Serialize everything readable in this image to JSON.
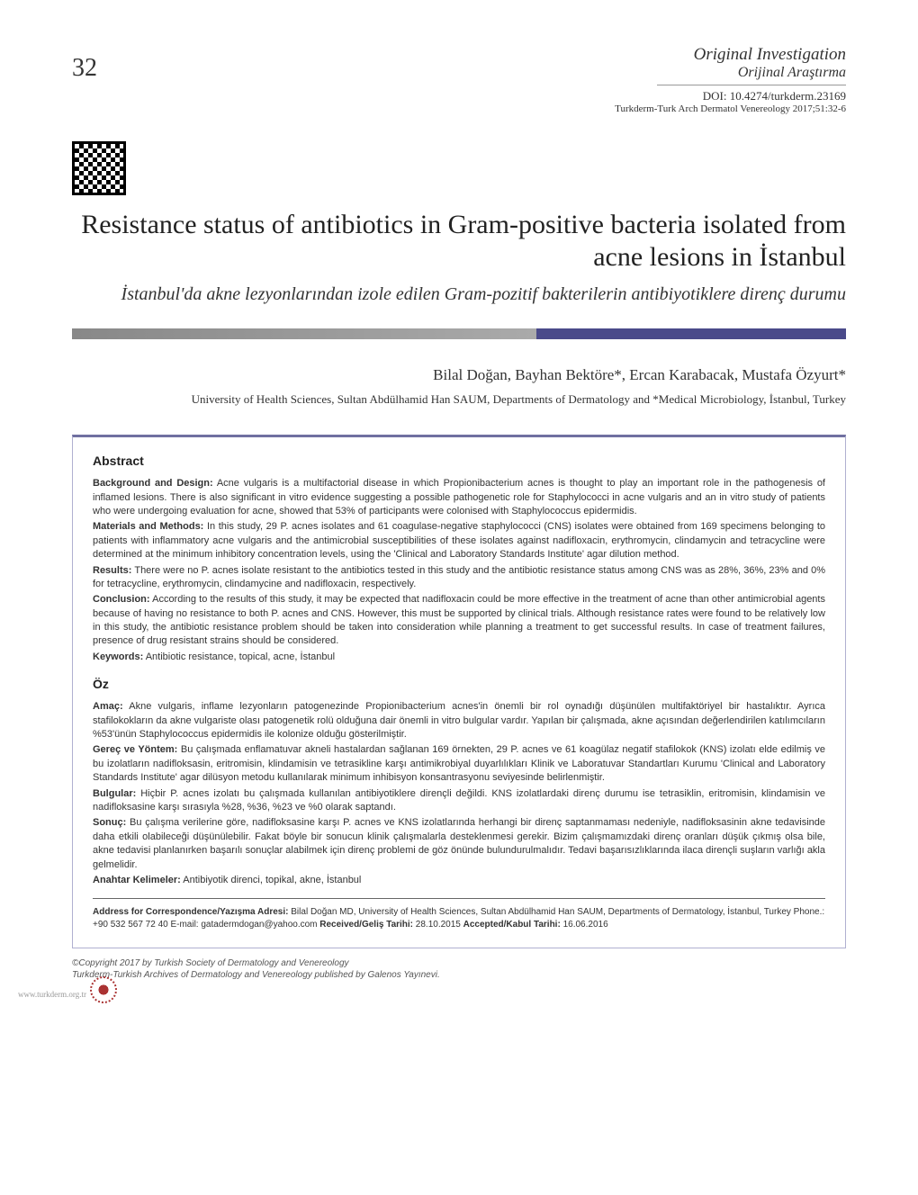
{
  "page_number": "32",
  "header": {
    "article_type_en": "Original Investigation",
    "article_type_tr": "Orijinal Araştırma",
    "doi": "DOI: 10.4274/turkderm.23169",
    "citation": "Turkderm-Turk Arch Dermatol Venereology 2017;51:32-6"
  },
  "title": {
    "en": "Resistance status of antibiotics in Gram-positive bacteria isolated from acne lesions in İstanbul",
    "tr": "İstanbul'da akne lezyonlarından izole edilen Gram-pozitif bakterilerin antibiyotiklere direnç durumu"
  },
  "authors": "Bilal Doğan, Bayhan Bektöre*, Ercan Karabacak, Mustafa Özyurt*",
  "affiliation": "University of Health Sciences, Sultan Abdülhamid Han SAUM, Departments of Dermatology and *Medical Microbiology, İstanbul, Turkey",
  "abstract": {
    "heading": "Abstract",
    "background_label": "Background and Design:",
    "background_text": " Acne vulgaris is a multifactorial disease in which Propionibacterium acnes is thought to play an important role in the pathogenesis of inflamed lesions. There is also significant in vitro evidence suggesting a possible pathogenetic role for Staphylococci in acne vulgaris and an in vitro study of patients who were undergoing evaluation for acne, showed that 53% of participants were colonised with Staphylococcus epidermidis.",
    "materials_label": "Materials and Methods:",
    "materials_text": " In this study, 29 P. acnes isolates and 61 coagulase-negative staphylococci (CNS) isolates were obtained from 169 specimens belonging to patients with inflammatory acne vulgaris and the antimicrobial susceptibilities of these isolates against nadifloxacin, erythromycin, clindamycin and tetracycline were determined at the minimum inhibitory concentration levels, using the 'Clinical and Laboratory Standards Institute' agar dilution method.",
    "results_label": "Results:",
    "results_text": " There were no P. acnes isolate resistant to the antibiotics tested in this study and the antibiotic resistance status among CNS was as 28%, 36%, 23% and 0% for tetracycline, erythromycin, clindamycine and nadifloxacin, respectively.",
    "conclusion_label": "Conclusion:",
    "conclusion_text": " According to the results of this study, it may be expected that nadifloxacin could be more effective in the treatment of acne than other antimicrobial agents because of having no resistance to both P. acnes and CNS. However, this must be supported by clinical trials. Although resistance rates were found to be relatively low in this study, the antibiotic resistance problem should be taken into consideration while planning a treatment to get successful results. In case of treatment failures, presence of drug resistant strains should be considered.",
    "keywords_label": "Keywords:",
    "keywords_text": " Antibiotic resistance, topical, acne, İstanbul"
  },
  "oz": {
    "heading": "Öz",
    "amac_label": "Amaç:",
    "amac_text": " Akne vulgaris, inflame lezyonların patogenezinde Propionibacterium acnes'in önemli bir rol oynadığı düşünülen multifaktöriyel bir hastalıktır. Ayrıca stafilokokların da akne vulgariste olası patogenetik rolü olduğuna dair önemli in vitro bulgular vardır. Yapılan bir çalışmada, akne açısından değerlendirilen katılımcıların %53'ünün Staphylococcus epidermidis ile kolonize olduğu gösterilmiştir.",
    "gerec_label": "Gereç ve Yöntem:",
    "gerec_text": " Bu çalışmada enflamatuvar akneli hastalardan sağlanan 169 örnekten, 29 P. acnes ve 61 koagülaz negatif stafilokok (KNS) izolatı elde edilmiş ve bu izolatların nadifloksasin, eritromisin, klindamisin ve tetrasikline karşı antimikrobiyal duyarlılıkları Klinik ve Laboratuvar Standartları Kurumu 'Clinical and Laboratory Standards Institute' agar dilüsyon metodu kullanılarak minimum inhibisyon konsantrasyonu seviyesinde belirlenmiştir.",
    "bulgular_label": "Bulgular:",
    "bulgular_text": " Hiçbir P. acnes izolatı bu çalışmada kullanılan antibiyotiklere dirençli değildi. KNS izolatlardaki direnç durumu ise tetrasiklin, eritromisin, klindamisin ve nadifloksasine karşı sırasıyla %28, %36, %23 ve %0 olarak saptandı.",
    "sonuc_label": "Sonuç:",
    "sonuc_text": " Bu çalışma verilerine göre, nadifloksasine karşı P. acnes ve KNS izolatlarında herhangi bir direnç saptanmaması nedeniyle, nadifloksasinin akne tedavisinde daha etkili olabileceği düşünülebilir. Fakat böyle bir sonucun klinik çalışmalarla desteklenmesi gerekir. Bizim çalışmamızdaki direnç oranları düşük çıkmış olsa bile, akne tedavisi planlanırken başarılı sonuçlar alabilmek için direnç problemi de göz önünde bulundurulmalıdır. Tedavi başarısızlıklarında ilaca dirençli suşların varlığı akla gelmelidir.",
    "keywords_label": "Anahtar Kelimeler:",
    "keywords_text": " Antibiyotik direnci, topikal, akne, İstanbul"
  },
  "correspondence": {
    "address_label": "Address for Correspondence/Yazışma Adresi:",
    "address_text": " Bilal Doğan MD, University of Health Sciences, Sultan Abdülhamid Han SAUM, Departments of Dermatology, İstanbul, Turkey Phone.: +90 532 567 72 40 E-mail: gatadermdogan@yahoo.com",
    "received_label": "Received/Geliş Tarihi:",
    "received_text": " 28.10.2015",
    "accepted_label": "Accepted/Kabul Tarihi:",
    "accepted_text": " 16.06.2016"
  },
  "copyright": {
    "line1": "©Copyright 2017 by Turkish Society of Dermatology and Venereology",
    "line2": "Turkderm-Turkish Archives of Dermatology and Venereology published by Galenos Yayınevi."
  },
  "footer": {
    "website": "www.turkderm.org.tr"
  },
  "colors": {
    "text_primary": "#333333",
    "text_dark": "#222222",
    "divider_gray": "#888888",
    "divider_blue": "#4a4a8a",
    "border_light": "#b0b0d0",
    "border_top": "#7070a0",
    "stamp": "#aa3333",
    "background": "#ffffff"
  },
  "typography": {
    "page_number_size": 28,
    "title_en_size": 30,
    "title_tr_size": 20,
    "authors_size": 17,
    "affiliation_size": 13,
    "body_size": 11,
    "footer_size": 10
  }
}
